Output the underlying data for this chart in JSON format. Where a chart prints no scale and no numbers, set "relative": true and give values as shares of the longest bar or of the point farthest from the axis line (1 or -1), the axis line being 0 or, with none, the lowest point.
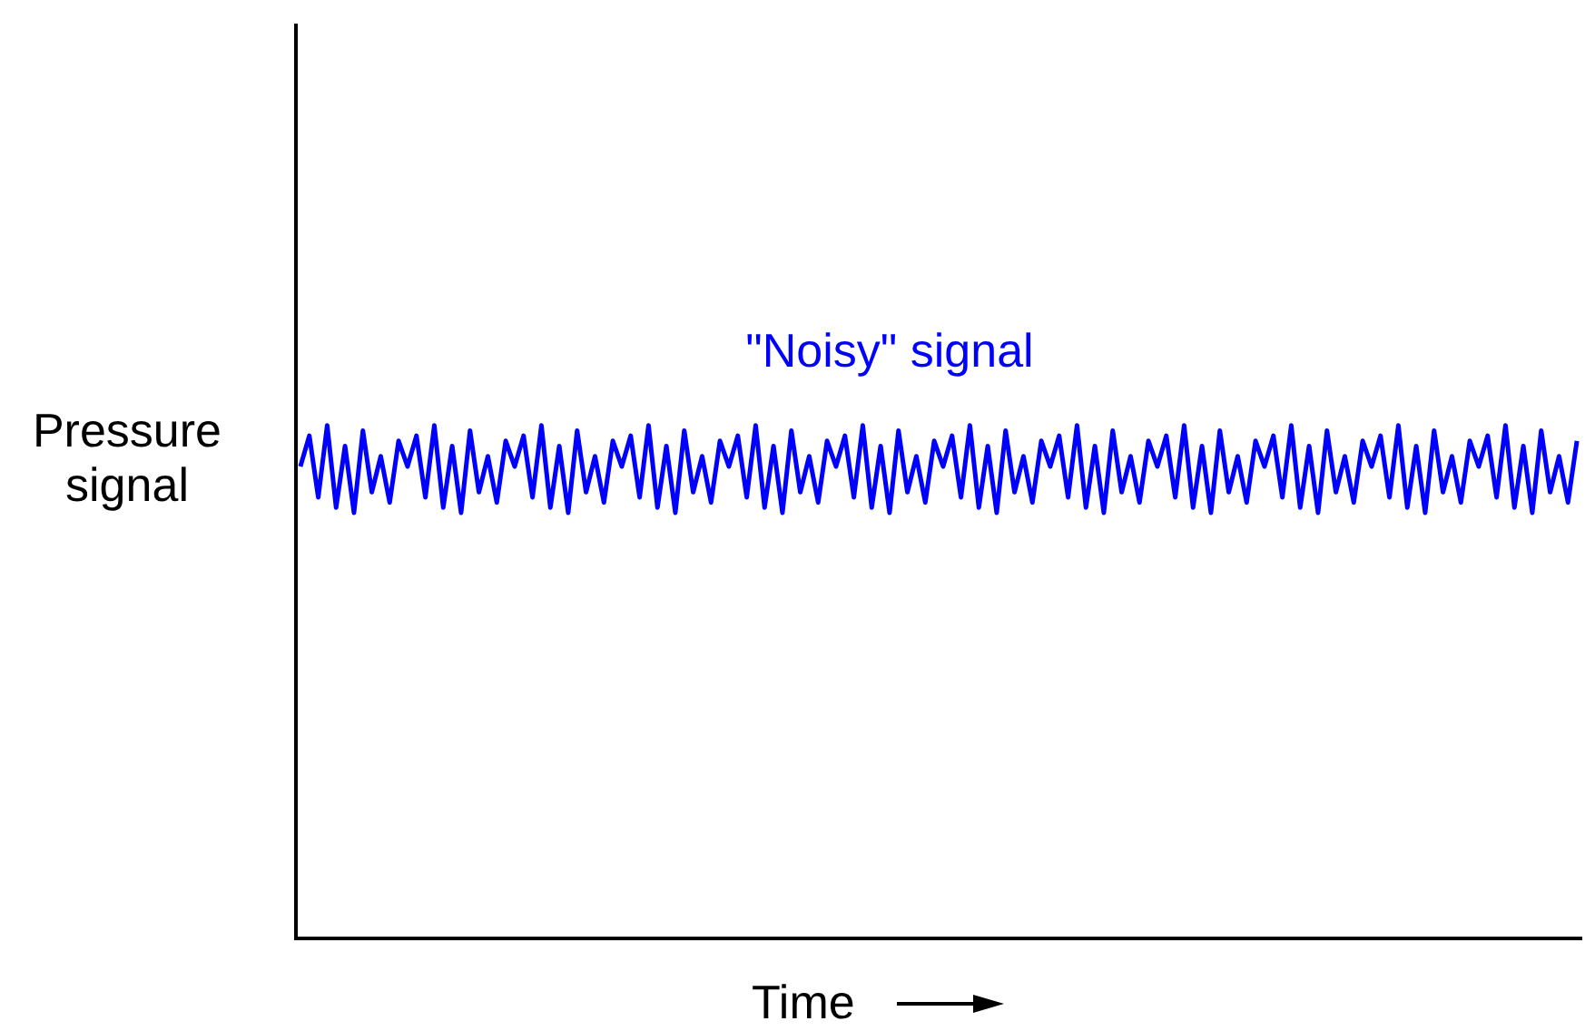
{
  "chart_data": {
    "type": "line",
    "relative": true,
    "xlabel": "Time",
    "ylabel": "Pressure signal",
    "annotations": [
      "\"Noisy\" signal"
    ],
    "grid": false,
    "legend": false,
    "marker": "none",
    "line_style": "solid",
    "categories": [
      null,
      null,
      null,
      null,
      null,
      null,
      null,
      null,
      null,
      null,
      null,
      null,
      null,
      null,
      null,
      null,
      null,
      null,
      null,
      null,
      null,
      null,
      null,
      null,
      null,
      null,
      null,
      null,
      null,
      null,
      null,
      null,
      null,
      null,
      null,
      null,
      null,
      null,
      null,
      null,
      null,
      null,
      null,
      null,
      null,
      null,
      null,
      null,
      null,
      null,
      null,
      null,
      null,
      null,
      null,
      null,
      null,
      null,
      null,
      null,
      null,
      null,
      null,
      null,
      null,
      null,
      null,
      null,
      null,
      null,
      null,
      null,
      null,
      null,
      null,
      null,
      null,
      null,
      null,
      null,
      null,
      null,
      null,
      null,
      null,
      null,
      null,
      null,
      null,
      null,
      null,
      null,
      null,
      null,
      null,
      null,
      null,
      null,
      null,
      null,
      null,
      null,
      null,
      null,
      null,
      null,
      null,
      null,
      null,
      null,
      null,
      null,
      null,
      null,
      null,
      null,
      null,
      null,
      null,
      null,
      null,
      null,
      null,
      null,
      null,
      null,
      null,
      null,
      null,
      null,
      null,
      null,
      null,
      null,
      null,
      null,
      null,
      null,
      null,
      null,
      null,
      null,
      null,
      null
    ],
    "series": [
      {
        "color": "#0000ff",
        "values": [
          0.92,
          0.98,
          0.86,
          1.0,
          0.84,
          0.96,
          0.83,
          0.99,
          0.87,
          0.94,
          0.85,
          0.97,
          0.92,
          0.98,
          0.86,
          1.0,
          0.84,
          0.96,
          0.83,
          0.99,
          0.87,
          0.94,
          0.85,
          0.97,
          0.92,
          0.98,
          0.86,
          1.0,
          0.84,
          0.96,
          0.83,
          0.99,
          0.87,
          0.94,
          0.85,
          0.97,
          0.92,
          0.98,
          0.86,
          1.0,
          0.84,
          0.96,
          0.83,
          0.99,
          0.87,
          0.94,
          0.85,
          0.97,
          0.92,
          0.98,
          0.86,
          1.0,
          0.84,
          0.96,
          0.83,
          0.99,
          0.87,
          0.94,
          0.85,
          0.97,
          0.92,
          0.98,
          0.86,
          1.0,
          0.84,
          0.96,
          0.83,
          0.99,
          0.87,
          0.94,
          0.85,
          0.97,
          0.92,
          0.98,
          0.86,
          1.0,
          0.84,
          0.96,
          0.83,
          0.99,
          0.87,
          0.94,
          0.85,
          0.97,
          0.92,
          0.98,
          0.86,
          1.0,
          0.84,
          0.96,
          0.83,
          0.99,
          0.87,
          0.94,
          0.85,
          0.97,
          0.92,
          0.98,
          0.86,
          1.0,
          0.84,
          0.96,
          0.83,
          0.99,
          0.87,
          0.94,
          0.85,
          0.97,
          0.92,
          0.98,
          0.86,
          1.0,
          0.84,
          0.96,
          0.83,
          0.99,
          0.87,
          0.94,
          0.85,
          0.97,
          0.92,
          0.98,
          0.86,
          1.0,
          0.84,
          0.96,
          0.83,
          0.99,
          0.87,
          0.94,
          0.85,
          0.97,
          0.92,
          0.98,
          0.86,
          1.0,
          0.84,
          0.96,
          0.83,
          0.99,
          0.87,
          0.94,
          0.85,
          0.97
        ]
      }
    ]
  }
}
